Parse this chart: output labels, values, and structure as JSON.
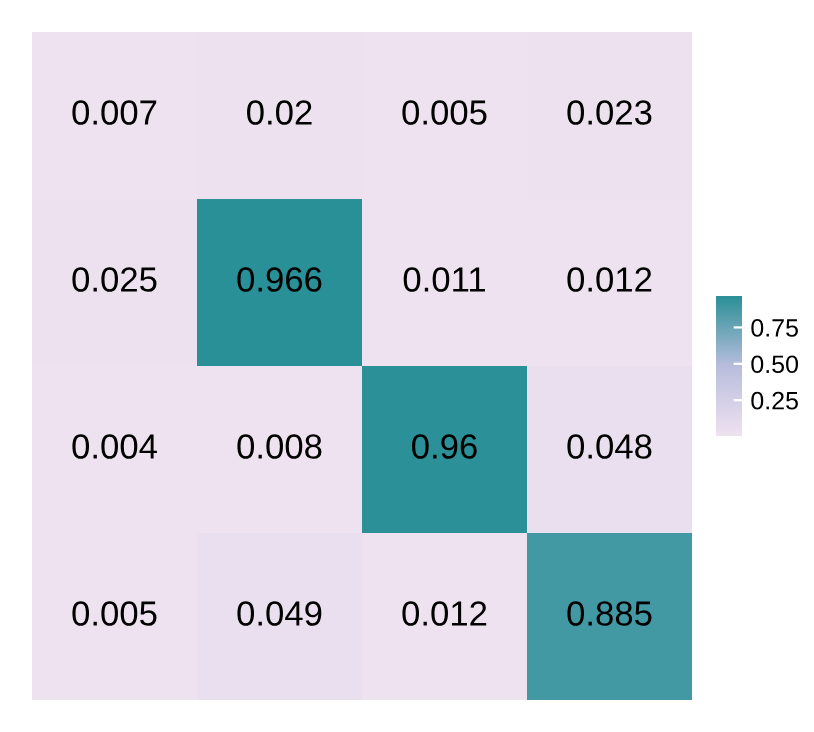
{
  "chart_data": {
    "type": "heatmap",
    "categories": [
      null,
      null,
      null,
      null
    ],
    "y_categories": [
      null,
      null,
      null,
      null
    ],
    "cells": [
      [
        0.007,
        0.02,
        0.005,
        0.023
      ],
      [
        0.025,
        0.966,
        0.011,
        0.012
      ],
      [
        0.004,
        0.008,
        0.96,
        0.048
      ],
      [
        0.005,
        0.049,
        0.012,
        0.885
      ]
    ],
    "clim": [
      0.004,
      0.966
    ],
    "cticks": [
      0.25,
      {
        "value": 0.5,
        "label": "0.50"
      },
      0.75
    ],
    "data_labels": true
  }
}
